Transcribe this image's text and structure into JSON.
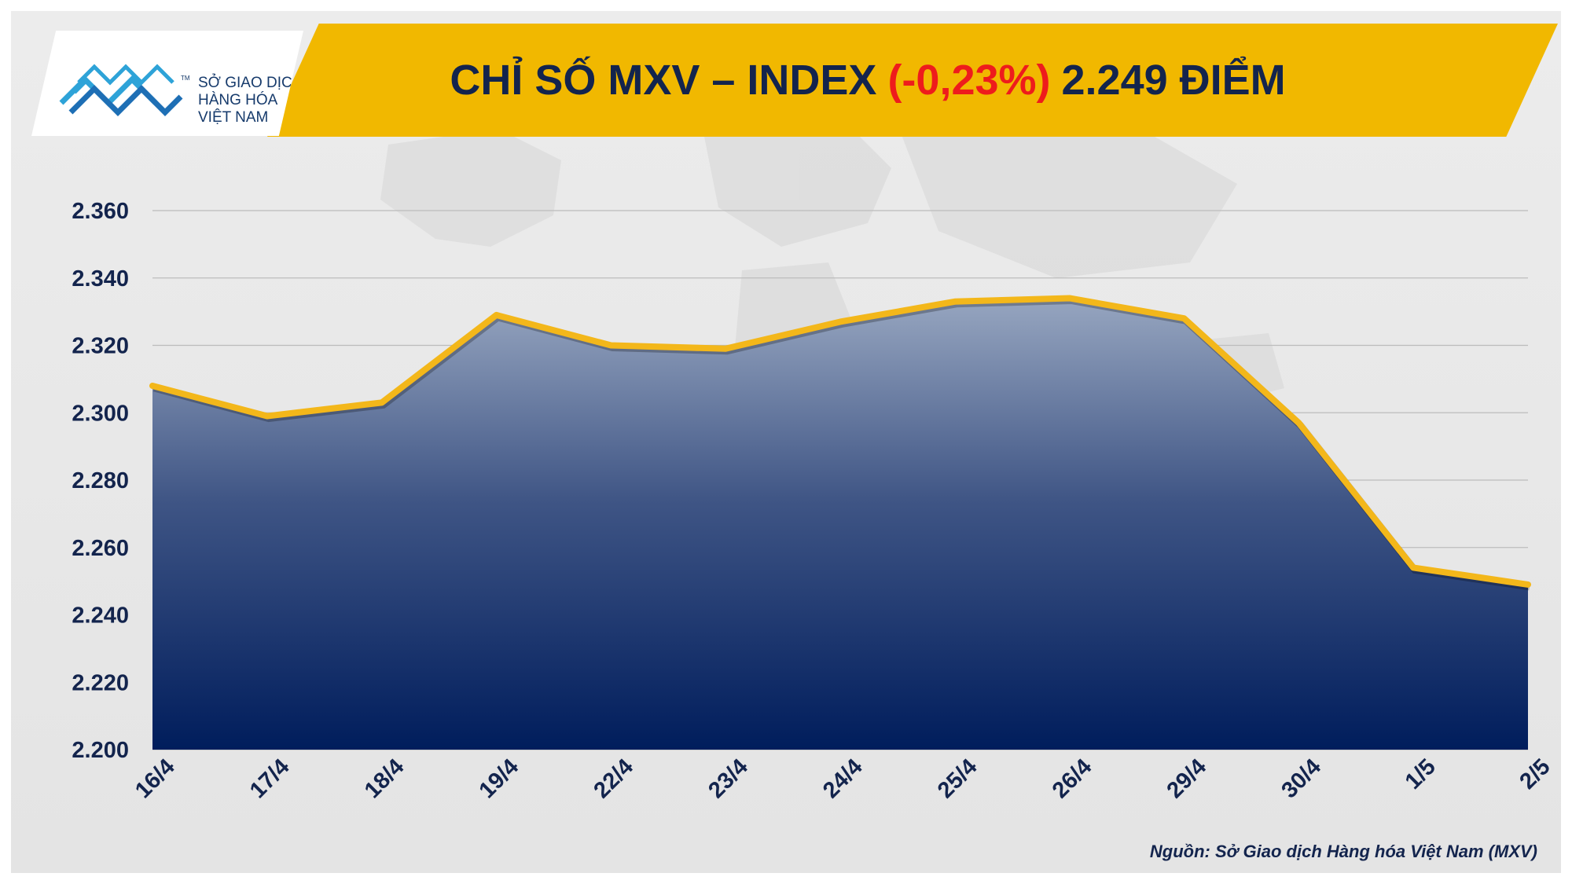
{
  "header": {
    "title_prefix": "CHỈ SỐ MXV – INDEX",
    "title_change": "(-0,23%)",
    "title_suffix": "2.249 ĐIỂM"
  },
  "logo": {
    "line1": "SỞ GIAO DỊCH",
    "line2": "HÀNG HÓA",
    "line3": "VIỆT NAM",
    "tm": "TM"
  },
  "source": "Nguồn: Sở Giao dịch Hàng hóa Việt Nam (MXV)",
  "colors": {
    "banner": "#f1b800",
    "line": "#f3b71a",
    "area_top": "#97a6c0",
    "area_bottom": "#001d5c",
    "text": "#13244d",
    "change_negative": "#ee1c1c"
  },
  "chart_data": {
    "type": "area",
    "categories": [
      "16/4",
      "17/4",
      "18/4",
      "19/4",
      "22/4",
      "23/4",
      "24/4",
      "25/4",
      "26/4",
      "29/4",
      "30/4",
      "1/5",
      "2/5"
    ],
    "values": [
      2308,
      2299,
      2303,
      2329,
      2320,
      2319,
      2327,
      2333,
      2334,
      2328,
      2297,
      2254,
      2249
    ],
    "ylim": [
      2200,
      2360
    ],
    "yticks": [
      "2.200",
      "2.220",
      "2.240",
      "2.260",
      "2.280",
      "2.300",
      "2.320",
      "2.340",
      "2.360"
    ],
    "title": "",
    "xlabel": "",
    "ylabel": "",
    "grid": true,
    "legend": "none"
  }
}
